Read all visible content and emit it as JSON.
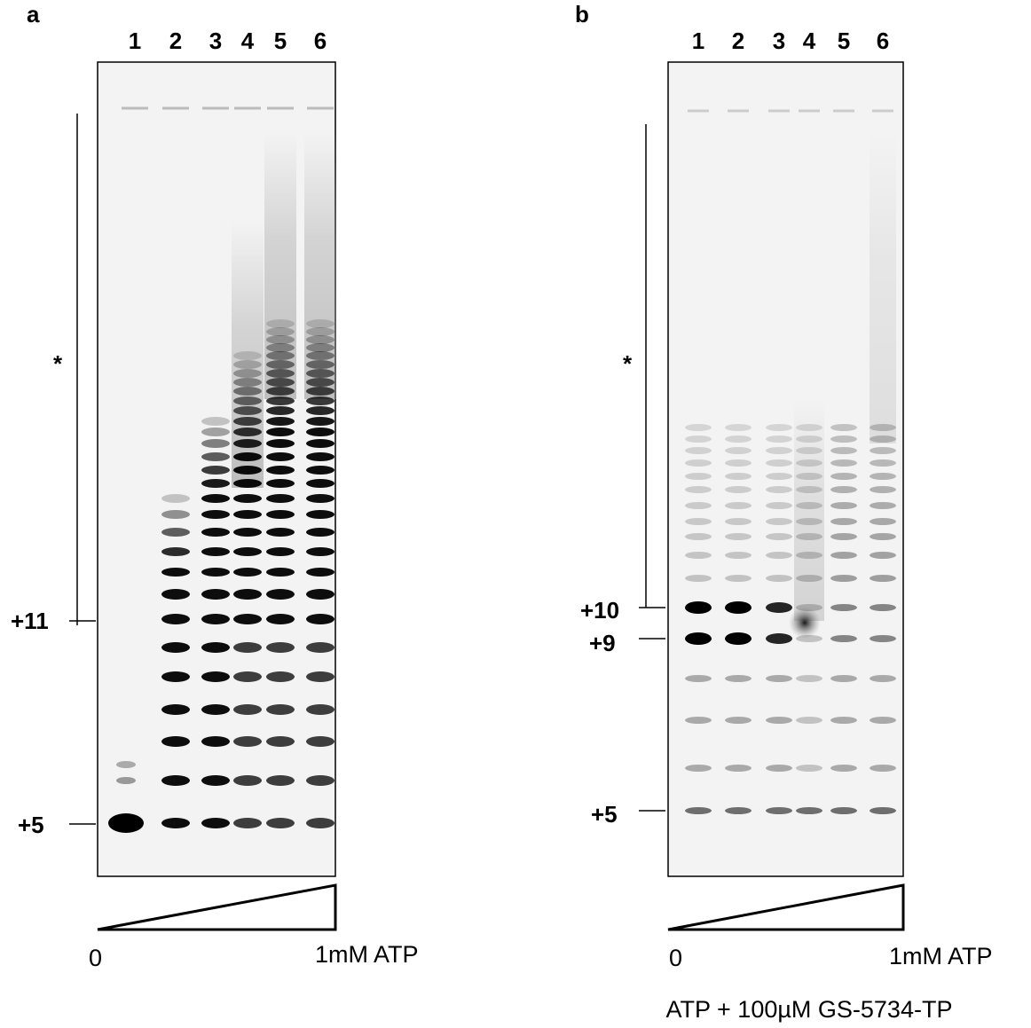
{
  "panels": [
    {
      "label": "a",
      "lanes": [
        "1",
        "2",
        "3",
        "4",
        "5",
        "6"
      ],
      "markers": [
        "*",
        "+11",
        "+5"
      ],
      "gradient": {
        "start": "0",
        "end": "1mM ATP"
      }
    },
    {
      "label": "b",
      "lanes": [
        "1",
        "2",
        "3",
        "4",
        "5",
        "6"
      ],
      "markers": [
        "*",
        "+10",
        "+9",
        "+5"
      ],
      "gradient": {
        "start": "0",
        "end": "1mM ATP"
      },
      "caption": "ATP + 100µM GS-5734-TP"
    }
  ]
}
